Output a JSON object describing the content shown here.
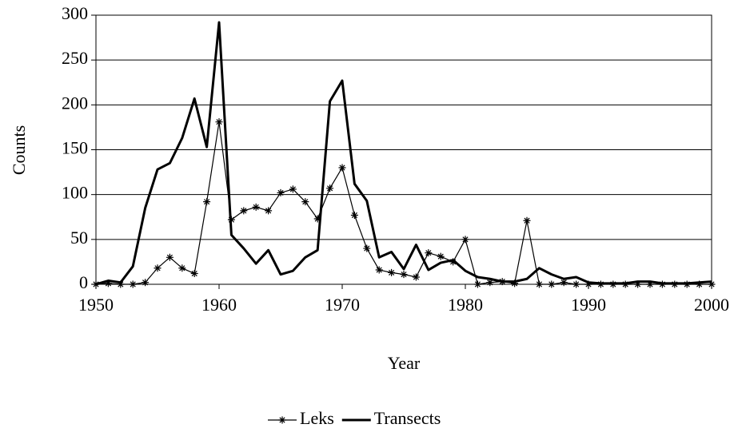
{
  "chart_data": {
    "type": "line",
    "x_label": "Year",
    "y_label": "Counts",
    "x": [
      1950,
      1951,
      1952,
      1953,
      1954,
      1955,
      1956,
      1957,
      1958,
      1959,
      1960,
      1961,
      1962,
      1963,
      1964,
      1965,
      1966,
      1967,
      1968,
      1969,
      1970,
      1971,
      1972,
      1973,
      1974,
      1975,
      1976,
      1977,
      1978,
      1979,
      1980,
      1981,
      1982,
      1983,
      1984,
      1985,
      1986,
      1987,
      1988,
      1989,
      1990,
      1991,
      1992,
      1993,
      1994,
      1995,
      1996,
      1997,
      1998,
      1999,
      2000
    ],
    "series": [
      {
        "name": "Leks",
        "color": "#000000",
        "marker": "asterisk",
        "values": [
          0,
          1,
          0,
          0,
          2,
          18,
          30,
          18,
          12,
          92,
          181,
          72,
          82,
          86,
          82,
          102,
          106,
          92,
          73,
          107,
          130,
          77,
          40,
          16,
          13,
          11,
          8,
          35,
          31,
          25,
          50,
          0,
          2,
          3,
          1,
          71,
          0,
          0,
          2,
          0,
          0,
          0,
          0,
          0,
          0,
          0,
          0,
          0,
          0,
          0,
          0
        ]
      },
      {
        "name": "Transects",
        "color": "#000000",
        "values": [
          0,
          4,
          2,
          20,
          85,
          128,
          135,
          163,
          207,
          153,
          292,
          55,
          40,
          23,
          38,
          11,
          15,
          30,
          38,
          204,
          227,
          112,
          93,
          30,
          36,
          17,
          44,
          16,
          24,
          27,
          15,
          8,
          6,
          3,
          3,
          6,
          18,
          11,
          6,
          8,
          2,
          1,
          1,
          1,
          3,
          3,
          1,
          1,
          1,
          2,
          3
        ]
      }
    ],
    "xlim": [
      1950,
      2000
    ],
    "xticks": [
      1950,
      1960,
      1970,
      1980,
      1990,
      2000
    ],
    "ylim": [
      0,
      300
    ],
    "yticks": [
      0,
      50,
      100,
      150,
      200,
      250,
      300
    ],
    "grid": true,
    "legend": "bottom"
  }
}
